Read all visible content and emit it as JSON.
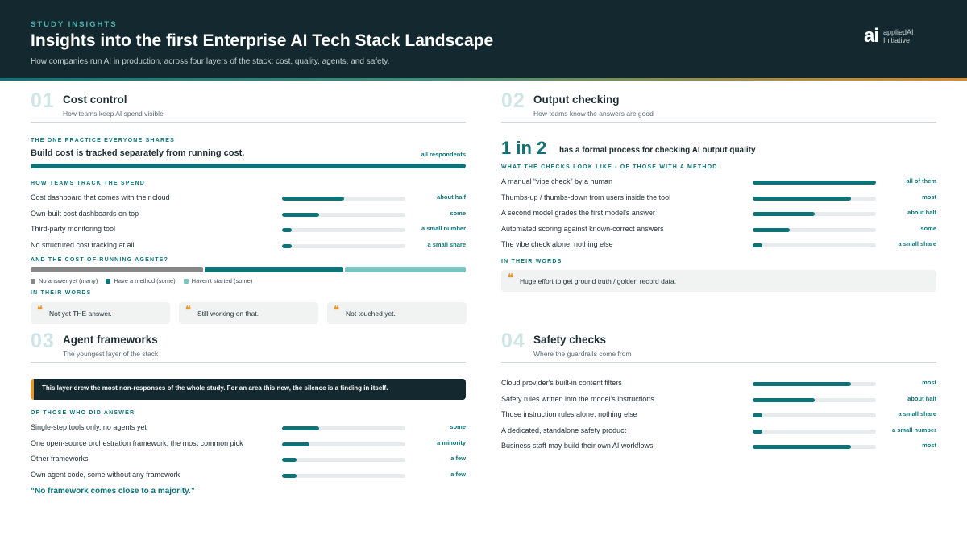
{
  "header": {
    "kicker": "STUDY INSIGHTS",
    "title": "Insights into the first Enterprise AI Tech Stack Landscape",
    "subtitle": "How companies run AI in production, across four layers of the stack: cost, quality, agents, and safety.",
    "logo_mark": "ai",
    "logo_line1": "appliedAI",
    "logo_line2": "Initiative"
  },
  "colors": {
    "accent": "#0d7377",
    "dark": "#13292f",
    "light_teal": "#7cc4c1",
    "grey": "#888888",
    "quote": "#e1962f"
  },
  "s1": {
    "num": "01",
    "title": "Cost control",
    "sub": "How teams keep AI spend visible",
    "shared_label": "THE ONE PRACTICE EVERYONE SHARES",
    "shared_text": "Build cost is tracked separately from running cost.",
    "shared_value": "all respondents",
    "shared_level": 1.0,
    "track_label": "HOW TEAMS TRACK THE SPEND",
    "rows": [
      {
        "label": "Cost dashboard that comes with their cloud",
        "value": "about half",
        "level": 0.5
      },
      {
        "label": "Own-built cost dashboards on top",
        "value": "some",
        "level": 0.3
      },
      {
        "label": "Third-party monitoring tool",
        "value": "a small number",
        "level": 0.08
      },
      {
        "label": "No structured cost tracking at all",
        "value": "a small share",
        "level": 0.08
      }
    ],
    "agents_label": "AND THE COST OF RUNNING AGENTS?",
    "agents_segments": [
      {
        "label": "No answer yet (many)",
        "share": 0.4,
        "color": "#888888"
      },
      {
        "label": "Have a method (some)",
        "share": 0.32,
        "color": "#0d7377"
      },
      {
        "label": "Haven't started (some)",
        "share": 0.28,
        "color": "#7cc4c1"
      }
    ],
    "words_label": "IN THEIR WORDS",
    "quotes": [
      "Not yet THE answer.",
      "Still working on that.",
      "Not touched yet."
    ]
  },
  "s2": {
    "num": "02",
    "title": "Output checking",
    "sub": "How teams know the answers are good",
    "big": "1 in 2",
    "big_text": "has a formal process for checking AI output quality",
    "checks_label": "WHAT THE CHECKS LOOK LIKE - OF THOSE WITH A METHOD",
    "rows": [
      {
        "label": "A manual “vibe check” by a human",
        "value": "all of them",
        "level": 1.0
      },
      {
        "label": "Thumbs-up / thumbs-down from users inside the tool",
        "value": "most",
        "level": 0.8
      },
      {
        "label": "A second model grades the first model's answer",
        "value": "about half",
        "level": 0.5
      },
      {
        "label": "Automated scoring against known-correct answers",
        "value": "some",
        "level": 0.3
      },
      {
        "label": "The vibe check alone, nothing else",
        "value": "a small share",
        "level": 0.08
      }
    ],
    "words_label": "IN THEIR WORDS",
    "quote": "Huge effort to get ground truth / golden record data."
  },
  "s3": {
    "num": "03",
    "title": "Agent frameworks",
    "sub": "The youngest layer of the stack",
    "callout": "This layer drew the most non-responses of the whole study. For an area this new, the silence is a finding in itself.",
    "answer_label": "OF THOSE WHO DID ANSWER",
    "rows": [
      {
        "label": "Single-step tools only, no agents yet",
        "value": "some",
        "level": 0.3
      },
      {
        "label": "One open-source orchestration framework, the most common pick",
        "value": "a minority",
        "level": 0.22
      },
      {
        "label": "Other frameworks",
        "value": "a few",
        "level": 0.12
      },
      {
        "label": "Own agent code, some without any framework",
        "value": "a few",
        "level": 0.12
      }
    ],
    "closing": "“No framework comes close to a majority.”"
  },
  "s4": {
    "num": "04",
    "title": "Safety checks",
    "sub": "Where the guardrails come from",
    "rows": [
      {
        "label": "Cloud provider's built-in content filters",
        "value": "most",
        "level": 0.8
      },
      {
        "label": "Safety rules written into the model's instructions",
        "value": "about half",
        "level": 0.5
      },
      {
        "label": "Those instruction rules alone, nothing else",
        "value": "a small share",
        "level": 0.08
      },
      {
        "label": "A dedicated, standalone safety product",
        "value": "a small number",
        "level": 0.08
      },
      {
        "label": "Business staff may build their own AI workflows",
        "value": "most",
        "level": 0.8
      }
    ]
  }
}
